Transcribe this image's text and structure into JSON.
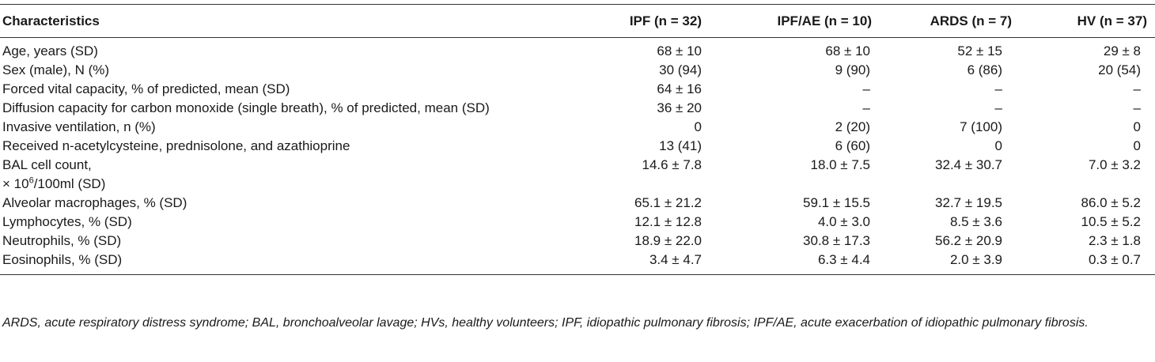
{
  "table": {
    "headers": [
      "Characteristics",
      "IPF (n = 32)",
      "IPF/AE (n = 10)",
      "ARDS (n = 7)",
      "HV (n = 37)"
    ],
    "rows": [
      {
        "label": "Age, years (SD)",
        "ipf": "68 ± 10",
        "ipf_ae": "68 ± 10",
        "ards": "52 ± 15",
        "hv": "29 ± 8"
      },
      {
        "label": "Sex (male), N (%)",
        "ipf": "30 (94)",
        "ipf_ae": "9 (90)",
        "ards": "6 (86)",
        "hv": "20 (54)"
      },
      {
        "label": "Forced vital capacity, % of predicted, mean (SD)",
        "ipf": "64 ± 16",
        "ipf_ae": "–",
        "ards": "–",
        "hv": "–"
      },
      {
        "label": "Diffusion capacity for carbon monoxide (single breath), % of predicted, mean (SD)",
        "ipf": "36 ± 20",
        "ipf_ae": "–",
        "ards": "–",
        "hv": "–"
      },
      {
        "label": "Invasive ventilation, n (%)",
        "ipf": "0",
        "ipf_ae": "2 (20)",
        "ards": "7 (100)",
        "hv": "0"
      },
      {
        "label": "Received n-acetylcysteine, prednisolone, and azathioprine",
        "ipf": "13 (41)",
        "ipf_ae": "6 (60)",
        "ards": "0",
        "hv": "0"
      },
      {
        "label_line1": "BAL cell count,",
        "label_line2_prefix": "× 10",
        "label_line2_sup": "6",
        "label_line2_suffix": "/100ml (SD)",
        "ipf": "14.6 ± 7.8",
        "ipf_ae": "18.0 ± 7.5",
        "ards": "32.4 ± 30.7",
        "hv": "7.0 ± 3.2"
      },
      {
        "label": "Alveolar macrophages, % (SD)",
        "ipf": "65.1 ± 21.2",
        "ipf_ae": "59.1 ± 15.5",
        "ards": "32.7 ± 19.5",
        "hv": "86.0 ± 5.2"
      },
      {
        "label": "Lymphocytes, % (SD)",
        "ipf": "12.1 ± 12.8",
        "ipf_ae": "4.0 ± 3.0",
        "ards": "8.5 ± 3.6",
        "hv": "10.5 ± 5.2"
      },
      {
        "label": "Neutrophils, % (SD)",
        "ipf": "18.9 ± 22.0",
        "ipf_ae": "30.8 ± 17.3",
        "ards": "56.2 ± 20.9",
        "hv": "2.3 ± 1.8"
      },
      {
        "label": "Eosinophils, % (SD)",
        "ipf": "3.4 ± 4.7",
        "ipf_ae": "6.3 ± 4.4",
        "ards": "2.0 ± 3.9",
        "hv": "0.3 ± 0.7"
      }
    ]
  },
  "footnote": "ARDS, acute respiratory distress syndrome; BAL, bronchoalveolar lavage; HVs, healthy volunteers; IPF, idiopathic pulmonary fibrosis; IPF/AE, acute exacerbation of idiopathic pulmonary fibrosis."
}
